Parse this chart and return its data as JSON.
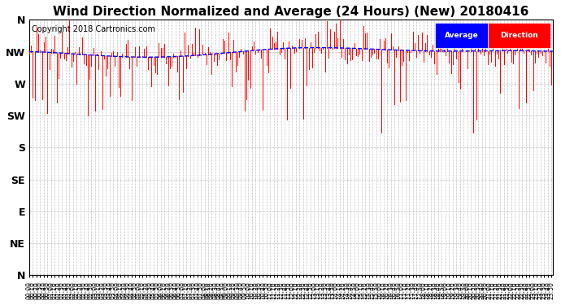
{
  "title": "Wind Direction Normalized and Average (24 Hours) (New) 20180416",
  "copyright": "Copyright 2018 Cartronics.com",
  "ytick_labels": [
    "N",
    "NW",
    "W",
    "SW",
    "S",
    "SE",
    "E",
    "NE",
    "N"
  ],
  "ytick_values": [
    360,
    315,
    270,
    225,
    180,
    135,
    90,
    45,
    0
  ],
  "ylim": [
    0,
    360
  ],
  "direction_color": "#FF0000",
  "average_color": "#0000FF",
  "background_color": "#FFFFFF",
  "grid_color": "#BBBBBB",
  "legend_avg_bg": "#0000FF",
  "legend_dir_bg": "#FF0000",
  "legend_text_color": "#FFFFFF",
  "copyright_color": "#000000",
  "title_fontsize": 11,
  "copyright_fontsize": 7,
  "ytick_fontsize": 9,
  "xtick_fontsize": 5.5
}
